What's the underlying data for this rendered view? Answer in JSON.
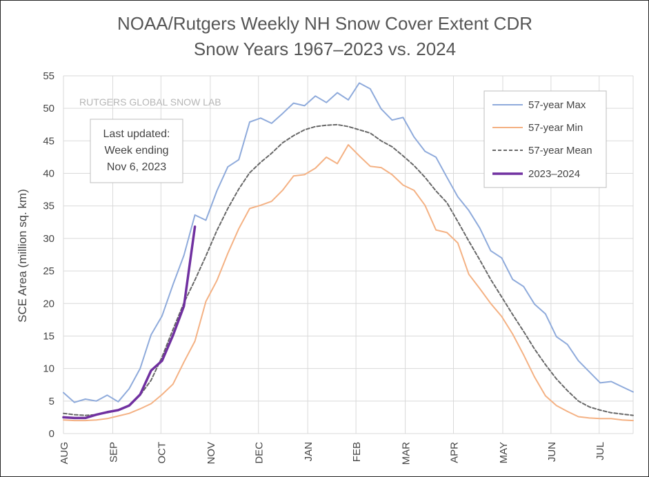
{
  "chart_data": {
    "type": "line",
    "title_line1": "NOAA/Rutgers Weekly NH Snow Cover Extent CDR",
    "title_line2": "Snow Years 1967–2023 vs. 2024",
    "ylabel": "SCE Area (million sq. km)",
    "xlabel": "",
    "ylim": [
      0,
      55
    ],
    "yticks": [
      0,
      5,
      10,
      15,
      20,
      25,
      30,
      35,
      40,
      45,
      50,
      55
    ],
    "xlim": [
      0,
      52
    ],
    "month_ticks": [
      {
        "label": "AUG",
        "week": 0
      },
      {
        "label": "SEP",
        "week": 4.5
      },
      {
        "label": "OCT",
        "week": 8.9
      },
      {
        "label": "NOV",
        "week": 13.4
      },
      {
        "label": "DEC",
        "week": 17.8
      },
      {
        "label": "JAN",
        "week": 22.3
      },
      {
        "label": "FEB",
        "week": 26.7
      },
      {
        "label": "MAR",
        "week": 31.2
      },
      {
        "label": "APR",
        "week": 35.6
      },
      {
        "label": "MAY",
        "week": 40.1
      },
      {
        "label": "JUN",
        "week": 44.5
      },
      {
        "label": "JUL",
        "week": 48.9
      }
    ],
    "grid": true,
    "watermark": "RUTGERS GLOBAL SNOW LAB",
    "note_lines": [
      "Last updated:",
      "Week ending",
      "Nov 6, 2023"
    ],
    "legend_position": "top-right",
    "series": [
      {
        "name": "57-year Max",
        "color": "#8eaadb",
        "style": "solid",
        "x": [
          0,
          1,
          2,
          3,
          4,
          5,
          6,
          7,
          8,
          9,
          10,
          11,
          12,
          13,
          14,
          15,
          16,
          17,
          18,
          19,
          20,
          21,
          22,
          23,
          24,
          25,
          26,
          27,
          28,
          29,
          30,
          31,
          32,
          33,
          34,
          35,
          36,
          37,
          38,
          39,
          40,
          41,
          42,
          43,
          44,
          45,
          46,
          47,
          48,
          49,
          50,
          51,
          52
        ],
        "values": [
          6.3,
          4.8,
          5.3,
          5.0,
          5.9,
          4.9,
          6.9,
          10.0,
          15.2,
          18.1,
          22.9,
          27.4,
          33.6,
          32.8,
          37.3,
          41.0,
          42.1,
          47.9,
          48.5,
          47.7,
          49.2,
          50.8,
          50.4,
          51.9,
          50.9,
          52.4,
          51.3,
          53.9,
          53.0,
          49.9,
          48.2,
          48.6,
          45.6,
          43.4,
          42.5,
          39.4,
          36.4,
          34.3,
          31.6,
          28.1,
          27.0,
          23.7,
          22.6,
          19.9,
          18.4,
          14.9,
          13.7,
          11.2,
          9.5,
          7.8,
          8.0,
          7.2,
          6.4
        ]
      },
      {
        "name": "57-year Min",
        "color": "#f4b183",
        "style": "solid",
        "x": [
          0,
          1,
          2,
          3,
          4,
          5,
          6,
          7,
          8,
          9,
          10,
          11,
          12,
          13,
          14,
          15,
          16,
          17,
          18,
          19,
          20,
          21,
          22,
          23,
          24,
          25,
          26,
          27,
          28,
          29,
          30,
          31,
          32,
          33,
          34,
          35,
          36,
          37,
          38,
          39,
          40,
          41,
          42,
          43,
          44,
          45,
          46,
          47,
          48,
          49,
          50,
          51,
          52
        ],
        "values": [
          2.1,
          2.0,
          2.0,
          2.1,
          2.3,
          2.7,
          3.1,
          3.8,
          4.6,
          6.0,
          7.6,
          11.0,
          14.2,
          20.3,
          23.5,
          27.7,
          31.5,
          34.6,
          35.1,
          35.7,
          37.4,
          39.6,
          39.8,
          40.8,
          42.5,
          41.5,
          44.4,
          42.7,
          41.1,
          40.9,
          39.8,
          38.2,
          37.4,
          35.1,
          31.3,
          30.9,
          29.3,
          24.5,
          22.3,
          20.0,
          18.0,
          15.3,
          12.1,
          8.7,
          5.8,
          4.3,
          3.4,
          2.6,
          2.4,
          2.3,
          2.3,
          2.1,
          2.0
        ]
      },
      {
        "name": "57-year Mean",
        "color": "#666666",
        "style": "dashed",
        "x": [
          0,
          1,
          2,
          3,
          4,
          5,
          6,
          7,
          8,
          9,
          10,
          11,
          12,
          13,
          14,
          15,
          16,
          17,
          18,
          19,
          20,
          21,
          22,
          23,
          24,
          25,
          26,
          27,
          28,
          29,
          30,
          31,
          32,
          33,
          34,
          35,
          36,
          37,
          38,
          39,
          40,
          41,
          42,
          43,
          44,
          45,
          46,
          47,
          48,
          49,
          50,
          51,
          52
        ],
        "values": [
          3.1,
          2.9,
          2.8,
          2.9,
          3.2,
          3.6,
          4.4,
          5.9,
          8.2,
          11.8,
          16.0,
          20.1,
          23.6,
          27.3,
          31.2,
          34.6,
          37.6,
          40.1,
          41.7,
          43.1,
          44.7,
          45.8,
          46.7,
          47.2,
          47.4,
          47.5,
          47.2,
          46.7,
          46.2,
          45.0,
          44.1,
          42.7,
          41.2,
          39.4,
          37.3,
          35.5,
          32.6,
          29.6,
          26.7,
          23.7,
          21.0,
          18.3,
          15.7,
          13.0,
          10.6,
          8.4,
          6.6,
          5.0,
          4.1,
          3.6,
          3.2,
          3.0,
          2.8
        ]
      },
      {
        "name": "2023–2024",
        "color": "#7030a0",
        "style": "solid",
        "x": [
          0,
          1,
          2,
          3,
          4,
          5,
          6,
          7,
          8,
          9,
          10,
          11,
          12
        ],
        "values": [
          2.5,
          2.4,
          2.4,
          2.9,
          3.3,
          3.6,
          4.3,
          6.0,
          9.7,
          11.2,
          15.1,
          19.6,
          31.8
        ]
      }
    ]
  }
}
